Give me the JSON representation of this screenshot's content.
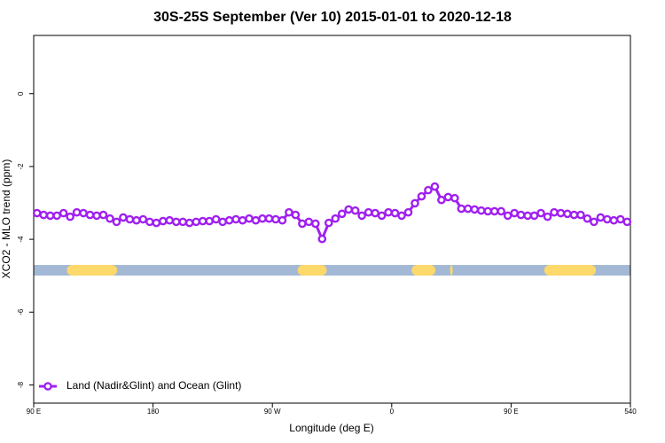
{
  "chart_data": {
    "type": "line",
    "title": "30S-25S September (Ver 10)   2015-01-01 to 2020-12-18",
    "x_label": "Longitude (deg E)",
    "y_label": "XCO2 - MLO trend (ppm)",
    "xlim": [
      90,
      540
    ],
    "ylim": [
      -8.5,
      1.6
    ],
    "xticks": [
      {
        "value": 90,
        "label": "90 E"
      },
      180,
      {
        "value": 270,
        "label": "90 W"
      },
      {
        "value": 360,
        "label": "0"
      },
      {
        "value": 450,
        "label": "90 E"
      },
      540
    ],
    "yticks": [
      0,
      -2,
      -4,
      -6,
      -8
    ],
    "legend": "bottom-left",
    "x": [
      92.5,
      97.5,
      102.5,
      107.5,
      112.5,
      117.5,
      122.5,
      127.5,
      132.5,
      137.5,
      142.5,
      147.5,
      152.5,
      157.5,
      162.5,
      167.5,
      172.5,
      177.5,
      182.5,
      187.5,
      192.5,
      197.5,
      202.5,
      207.5,
      212.5,
      217.5,
      222.5,
      227.5,
      232.5,
      237.5,
      242.5,
      247.5,
      252.5,
      257.5,
      262.5,
      267.5,
      272.5,
      277.5,
      282.5,
      287.5,
      292.5,
      297.5,
      302.5,
      307.5,
      312.5,
      317.5,
      322.5,
      327.5,
      332.5,
      337.5,
      342.5,
      347.5,
      352.5,
      357.5,
      362.5,
      367.5,
      372.5,
      377.5,
      382.5,
      387.5,
      392.5,
      397.5,
      402.5,
      407.5,
      412.5,
      417.5,
      422.5,
      427.5,
      432.5,
      437.5,
      442.5,
      447.5,
      452.5,
      457.5,
      462.5,
      467.5,
      472.5,
      477.5,
      482.5,
      487.5,
      492.5,
      497.5,
      502.5,
      507.5,
      512.5,
      517.5,
      522.5,
      527.5,
      532.5,
      537.5
    ],
    "series": [
      {
        "name": "Land (Nadir&Glint) and Ocean (Glint)",
        "color": "#a020f0",
        "values": [
          -3.28,
          -3.33,
          -3.35,
          -3.35,
          -3.28,
          -3.38,
          -3.26,
          -3.28,
          -3.33,
          -3.35,
          -3.33,
          -3.43,
          -3.52,
          -3.4,
          -3.45,
          -3.48,
          -3.45,
          -3.52,
          -3.55,
          -3.5,
          -3.48,
          -3.52,
          -3.52,
          -3.55,
          -3.52,
          -3.5,
          -3.5,
          -3.45,
          -3.52,
          -3.48,
          -3.45,
          -3.48,
          -3.43,
          -3.48,
          -3.43,
          -3.43,
          -3.45,
          -3.48,
          -3.26,
          -3.33,
          -3.57,
          -3.52,
          -3.57,
          -3.99,
          -3.55,
          -3.43,
          -3.3,
          -3.18,
          -3.21,
          -3.35,
          -3.26,
          -3.28,
          -3.35,
          -3.26,
          -3.28,
          -3.35,
          -3.26,
          -3.01,
          -2.82,
          -2.65,
          -2.55,
          -2.92,
          -2.84,
          -2.87,
          -3.16,
          -3.16,
          -3.18,
          -3.21,
          -3.23,
          -3.23,
          -3.23,
          -3.35,
          -3.28,
          -3.33,
          -3.35,
          -3.35,
          -3.28,
          -3.38,
          -3.26,
          -3.28,
          -3.3,
          -3.33,
          -3.33,
          -3.43,
          -3.52,
          -3.4,
          -3.45,
          -3.48,
          -3.45,
          -3.52
        ]
      }
    ],
    "surface_band": {
      "y": -4.85,
      "ocean_color": "#a3b8d4",
      "land_color": "#fdd86b",
      "land_segments": [
        [
          115,
          153
        ],
        [
          289,
          311
        ],
        [
          375,
          393
        ],
        [
          404,
          406
        ],
        [
          475,
          514
        ]
      ]
    }
  }
}
